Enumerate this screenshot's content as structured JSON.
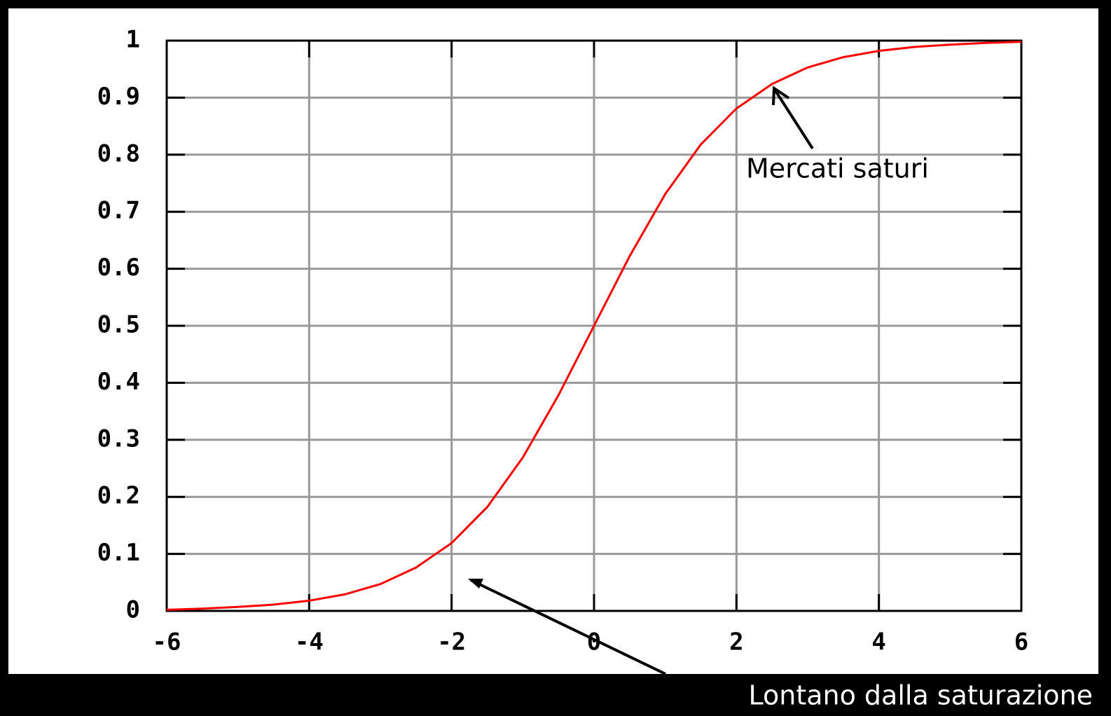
{
  "chart_data": {
    "type": "line",
    "x": [
      -6,
      -5.5,
      -5,
      -4.5,
      -4,
      -3.5,
      -3,
      -2.5,
      -2,
      -1.5,
      -1,
      -0.5,
      0,
      0.5,
      1,
      1.5,
      2,
      2.5,
      3,
      3.5,
      4,
      4.5,
      5,
      5.5,
      6
    ],
    "values": [
      0.002,
      0.004,
      0.007,
      0.011,
      0.018,
      0.029,
      0.047,
      0.076,
      0.119,
      0.182,
      0.269,
      0.378,
      0.5,
      0.622,
      0.731,
      0.818,
      0.881,
      0.924,
      0.953,
      0.971,
      0.982,
      0.989,
      0.993,
      0.996,
      0.998
    ],
    "color": "#ff0000",
    "xlim": [
      -6,
      6
    ],
    "xticks": [
      -6,
      -4,
      -2,
      0,
      2,
      4,
      6
    ],
    "ylim": [
      0,
      1
    ],
    "yticks": [
      0,
      0.1,
      0.2,
      0.3,
      0.4,
      0.5,
      0.6,
      0.7,
      0.8,
      0.9,
      1
    ],
    "grid": true,
    "annotations": [
      "Mercati saturi",
      "Lontano dalla saturazione"
    ]
  }
}
